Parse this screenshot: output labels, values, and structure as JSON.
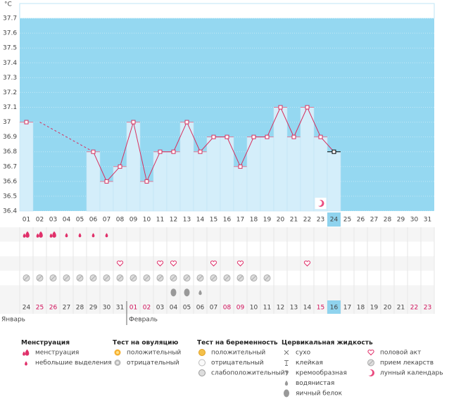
{
  "chart_data": {
    "type": "line",
    "unit": "°C",
    "categories": [
      "01",
      "02",
      "03",
      "04",
      "05",
      "06",
      "07",
      "08",
      "09",
      "10",
      "11",
      "12",
      "13",
      "14",
      "15",
      "16",
      "17",
      "18",
      "19",
      "20",
      "21",
      "22",
      "23",
      "24",
      "25",
      "26",
      "27",
      "28",
      "29",
      "30",
      "31"
    ],
    "values": [
      37,
      null,
      null,
      null,
      null,
      36.8,
      36.6,
      36.7,
      37,
      36.6,
      36.8,
      36.8,
      37,
      36.8,
      36.9,
      36.9,
      36.7,
      36.9,
      36.9,
      37.1,
      36.9,
      37.1,
      36.9,
      36.8,
      null,
      null,
      null,
      null,
      null,
      null,
      null
    ],
    "color": "#d62f5e",
    "ylim": [
      36.4,
      37.8
    ],
    "yticks": [
      36.4,
      36.5,
      36.6,
      36.7,
      36.8,
      36.9,
      37,
      37.1,
      37.2,
      37.3,
      37.4,
      37.5,
      37.6,
      37.7
    ],
    "grid": true,
    "today": 24,
    "dates": [
      "24",
      "25",
      "26",
      "27",
      "28",
      "29",
      "30",
      "31",
      "01",
      "02",
      "03",
      "04",
      "05",
      "06",
      "07",
      "08",
      "09",
      "10",
      "11",
      "12",
      "13",
      "14",
      "15",
      "16",
      "17",
      "18",
      "19",
      "20",
      "21",
      "22",
      "23"
    ],
    "date_red": [
      false,
      true,
      true,
      false,
      false,
      false,
      false,
      false,
      true,
      true,
      false,
      false,
      false,
      false,
      false,
      true,
      true,
      false,
      false,
      false,
      false,
      false,
      true,
      false,
      false,
      false,
      false,
      false,
      false,
      true,
      true
    ],
    "months": [
      {
        "name": "Январь",
        "start": 1
      },
      {
        "name": "Февраль",
        "start": 9
      }
    ],
    "legend": [
      {
        "title": "Менструация",
        "items": [
          {
            "name": "менструация",
            "days": [
              1,
              2,
              3
            ]
          },
          {
            "name": "небольшие выделения",
            "days": [
              4,
              5,
              6,
              7
            ]
          }
        ]
      },
      {
        "title": "Тест на овуляцию",
        "items": [
          {
            "name": "положительный"
          },
          {
            "name": "отрицательный"
          }
        ]
      },
      {
        "title": "Тест на беременность",
        "items": [
          {
            "name": "положительный"
          },
          {
            "name": "отрицательный"
          },
          {
            "name": "слабоположительный"
          }
        ]
      },
      {
        "title": "Цервикальная жидкость",
        "items": [
          {
            "name": "сухо"
          },
          {
            "name": "клейкая"
          },
          {
            "name": "кремообразная"
          },
          {
            "name": "водянистая",
            "days": [
              14
            ]
          },
          {
            "name": "яичный белок",
            "days": [
              12,
              13
            ]
          }
        ]
      },
      {
        "items": [
          {
            "name": "половой акт",
            "days": [
              8,
              11,
              12,
              15,
              17,
              22
            ]
          },
          {
            "name": "прием лекарств",
            "days": [
              1,
              2,
              3,
              4,
              5,
              6,
              7,
              8,
              9,
              10,
              11,
              12,
              13,
              14,
              15,
              16,
              17,
              18,
              19
            ]
          },
          {
            "name": "лунный календарь",
            "days": [
              23
            ]
          }
        ]
      }
    ]
  }
}
